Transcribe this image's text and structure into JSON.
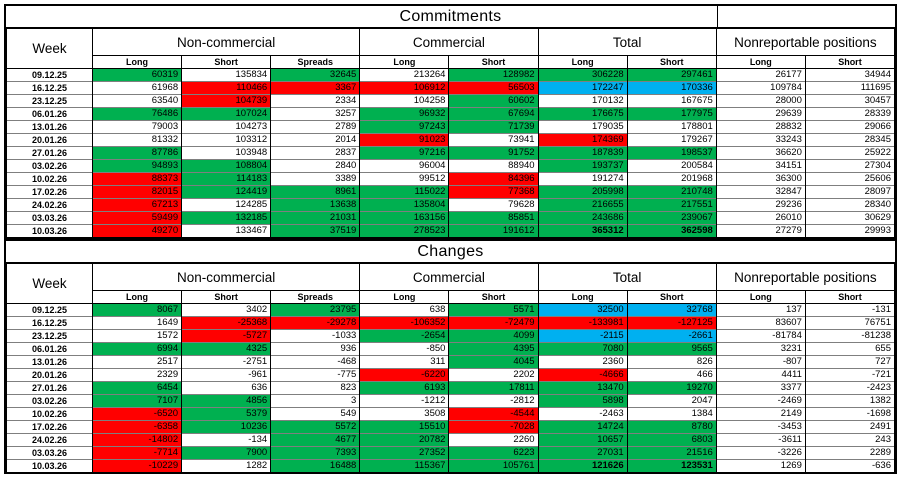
{
  "colors": {
    "green": "#00b050",
    "red": "#ff0000",
    "blue": "#00b0f0",
    "grid": "#7f7f7f"
  },
  "header": {
    "week_label": "Week",
    "groups": [
      {
        "label": "Non-commercial",
        "cols": [
          "Long",
          "Short",
          "Spreads"
        ]
      },
      {
        "label": "Commercial",
        "cols": [
          "Long",
          "Short"
        ]
      },
      {
        "label": "Total",
        "cols": [
          "Long",
          "Short"
        ]
      },
      {
        "label": "Nonreportable positions",
        "cols": [
          "Long",
          "Short"
        ]
      }
    ]
  },
  "sections": [
    {
      "title": "Commitments",
      "rows": [
        {
          "week": "09.12.25",
          "cells": [
            {
              "v": "60319",
              "c": "g"
            },
            {
              "v": "135834"
            },
            {
              "v": "32645",
              "c": "g"
            },
            {
              "v": "213264"
            },
            {
              "v": "128982",
              "c": "g"
            },
            {
              "v": "306228",
              "c": "g"
            },
            {
              "v": "297461",
              "c": "g"
            },
            {
              "v": "26177"
            },
            {
              "v": "34944"
            }
          ]
        },
        {
          "week": "16.12.25",
          "cells": [
            {
              "v": "61968"
            },
            {
              "v": "110466",
              "c": "r"
            },
            {
              "v": "3367",
              "c": "r"
            },
            {
              "v": "106912",
              "c": "r"
            },
            {
              "v": "56503",
              "c": "r"
            },
            {
              "v": "172247",
              "c": "b"
            },
            {
              "v": "170336",
              "c": "b"
            },
            {
              "v": "109784"
            },
            {
              "v": "111695"
            }
          ]
        },
        {
          "week": "23.12.25",
          "cells": [
            {
              "v": "63540"
            },
            {
              "v": "104739",
              "c": "r"
            },
            {
              "v": "2334"
            },
            {
              "v": "104258"
            },
            {
              "v": "60602",
              "c": "g"
            },
            {
              "v": "170132"
            },
            {
              "v": "167675"
            },
            {
              "v": "28000"
            },
            {
              "v": "30457"
            }
          ]
        },
        {
          "week": "06.01.26",
          "cells": [
            {
              "v": "76486",
              "c": "g"
            },
            {
              "v": "107024",
              "c": "g"
            },
            {
              "v": "3257"
            },
            {
              "v": "96932",
              "c": "g"
            },
            {
              "v": "67694",
              "c": "g"
            },
            {
              "v": "176675",
              "c": "g"
            },
            {
              "v": "177975",
              "c": "g"
            },
            {
              "v": "29639"
            },
            {
              "v": "28339"
            }
          ]
        },
        {
          "week": "13.01.26",
          "cells": [
            {
              "v": "79003"
            },
            {
              "v": "104273"
            },
            {
              "v": "2789"
            },
            {
              "v": "97243",
              "c": "g"
            },
            {
              "v": "71739",
              "c": "g"
            },
            {
              "v": "179035"
            },
            {
              "v": "178801"
            },
            {
              "v": "28832"
            },
            {
              "v": "29066"
            }
          ]
        },
        {
          "week": "20.01.26",
          "cells": [
            {
              "v": "81332"
            },
            {
              "v": "103312"
            },
            {
              "v": "2014"
            },
            {
              "v": "91023",
              "c": "r"
            },
            {
              "v": "73941"
            },
            {
              "v": "174369",
              "c": "r"
            },
            {
              "v": "179267"
            },
            {
              "v": "33243"
            },
            {
              "v": "28345"
            }
          ]
        },
        {
          "week": "27.01.26",
          "cells": [
            {
              "v": "87786",
              "c": "g"
            },
            {
              "v": "103948"
            },
            {
              "v": "2837"
            },
            {
              "v": "97216",
              "c": "g"
            },
            {
              "v": "91752",
              "c": "g"
            },
            {
              "v": "187839",
              "c": "g"
            },
            {
              "v": "198537",
              "c": "g"
            },
            {
              "v": "36620"
            },
            {
              "v": "25922"
            }
          ]
        },
        {
          "week": "03.02.26",
          "cells": [
            {
              "v": "94893",
              "c": "g"
            },
            {
              "v": "108804",
              "c": "g"
            },
            {
              "v": "2840"
            },
            {
              "v": "96004"
            },
            {
              "v": "88940"
            },
            {
              "v": "193737",
              "c": "g"
            },
            {
              "v": "200584"
            },
            {
              "v": "34151"
            },
            {
              "v": "27304"
            }
          ]
        },
        {
          "week": "10.02.26",
          "cells": [
            {
              "v": "88373",
              "c": "r"
            },
            {
              "v": "114183",
              "c": "g"
            },
            {
              "v": "3389"
            },
            {
              "v": "99512"
            },
            {
              "v": "84396",
              "c": "r"
            },
            {
              "v": "191274"
            },
            {
              "v": "201968"
            },
            {
              "v": "36300"
            },
            {
              "v": "25606"
            }
          ]
        },
        {
          "week": "17.02.26",
          "cells": [
            {
              "v": "82015",
              "c": "r"
            },
            {
              "v": "124419",
              "c": "g"
            },
            {
              "v": "8961",
              "c": "g"
            },
            {
              "v": "115022",
              "c": "g"
            },
            {
              "v": "77368",
              "c": "r"
            },
            {
              "v": "205998",
              "c": "g"
            },
            {
              "v": "210748",
              "c": "g"
            },
            {
              "v": "32847"
            },
            {
              "v": "28097"
            }
          ]
        },
        {
          "week": "24.02.26",
          "cells": [
            {
              "v": "67213",
              "c": "r"
            },
            {
              "v": "124285"
            },
            {
              "v": "13638",
              "c": "g"
            },
            {
              "v": "135804",
              "c": "g"
            },
            {
              "v": "79628"
            },
            {
              "v": "216655",
              "c": "g"
            },
            {
              "v": "217551",
              "c": "g"
            },
            {
              "v": "29236"
            },
            {
              "v": "28340"
            }
          ]
        },
        {
          "week": "03.03.26",
          "cells": [
            {
              "v": "59499",
              "c": "r"
            },
            {
              "v": "132185",
              "c": "g"
            },
            {
              "v": "21031",
              "c": "g"
            },
            {
              "v": "163156",
              "c": "g"
            },
            {
              "v": "85851",
              "c": "g"
            },
            {
              "v": "243686",
              "c": "g"
            },
            {
              "v": "239067",
              "c": "g"
            },
            {
              "v": "26010"
            },
            {
              "v": "30629"
            }
          ]
        },
        {
          "week": "10.03.26",
          "cells": [
            {
              "v": "49270",
              "c": "r"
            },
            {
              "v": "133467"
            },
            {
              "v": "37519",
              "c": "g"
            },
            {
              "v": "278523",
              "c": "g"
            },
            {
              "v": "191612",
              "c": "g"
            },
            {
              "v": "365312",
              "c": "g",
              "b": 1
            },
            {
              "v": "362598",
              "c": "g",
              "b": 1
            },
            {
              "v": "27279"
            },
            {
              "v": "29993"
            }
          ]
        }
      ]
    },
    {
      "title": "Changes",
      "rows": [
        {
          "week": "09.12.25",
          "cells": [
            {
              "v": "8067",
              "c": "g"
            },
            {
              "v": "3402"
            },
            {
              "v": "23795",
              "c": "g"
            },
            {
              "v": "638"
            },
            {
              "v": "5571",
              "c": "g"
            },
            {
              "v": "32500",
              "c": "b"
            },
            {
              "v": "32768",
              "c": "b"
            },
            {
              "v": "137"
            },
            {
              "v": "-131"
            }
          ]
        },
        {
          "week": "16.12.25",
          "cells": [
            {
              "v": "1649"
            },
            {
              "v": "-25368",
              "c": "r"
            },
            {
              "v": "-29278",
              "c": "r"
            },
            {
              "v": "-106352",
              "c": "r"
            },
            {
              "v": "-72479",
              "c": "r"
            },
            {
              "v": "-133981",
              "c": "r"
            },
            {
              "v": "-127125",
              "c": "r"
            },
            {
              "v": "83607"
            },
            {
              "v": "76751"
            }
          ]
        },
        {
          "week": "23.12.25",
          "cells": [
            {
              "v": "1572"
            },
            {
              "v": "-5727",
              "c": "r"
            },
            {
              "v": "-1033"
            },
            {
              "v": "-2654",
              "c": "g"
            },
            {
              "v": "4099",
              "c": "g"
            },
            {
              "v": "-2115",
              "c": "b"
            },
            {
              "v": "-2661",
              "c": "b"
            },
            {
              "v": "-81784"
            },
            {
              "v": "-81238"
            }
          ]
        },
        {
          "week": "06.01.26",
          "cells": [
            {
              "v": "6994",
              "c": "g"
            },
            {
              "v": "4325",
              "c": "g"
            },
            {
              "v": "936"
            },
            {
              "v": "-850"
            },
            {
              "v": "4395",
              "c": "g"
            },
            {
              "v": "7080",
              "c": "g"
            },
            {
              "v": "9565",
              "c": "g"
            },
            {
              "v": "3231"
            },
            {
              "v": "655"
            }
          ]
        },
        {
          "week": "13.01.26",
          "cells": [
            {
              "v": "2517"
            },
            {
              "v": "-2751"
            },
            {
              "v": "-468"
            },
            {
              "v": "311"
            },
            {
              "v": "4045",
              "c": "g"
            },
            {
              "v": "2360"
            },
            {
              "v": "826"
            },
            {
              "v": "-807"
            },
            {
              "v": "727"
            }
          ]
        },
        {
          "week": "20.01.26",
          "cells": [
            {
              "v": "2329"
            },
            {
              "v": "-961"
            },
            {
              "v": "-775"
            },
            {
              "v": "-6220",
              "c": "r"
            },
            {
              "v": "2202"
            },
            {
              "v": "-4666",
              "c": "r"
            },
            {
              "v": "466"
            },
            {
              "v": "4411"
            },
            {
              "v": "-721"
            }
          ]
        },
        {
          "week": "27.01.26",
          "cells": [
            {
              "v": "6454",
              "c": "g"
            },
            {
              "v": "636"
            },
            {
              "v": "823"
            },
            {
              "v": "6193",
              "c": "g"
            },
            {
              "v": "17811",
              "c": "g"
            },
            {
              "v": "13470",
              "c": "g"
            },
            {
              "v": "19270",
              "c": "g"
            },
            {
              "v": "3377"
            },
            {
              "v": "-2423"
            }
          ]
        },
        {
          "week": "03.02.26",
          "cells": [
            {
              "v": "7107",
              "c": "g"
            },
            {
              "v": "4856",
              "c": "g"
            },
            {
              "v": "3"
            },
            {
              "v": "-1212"
            },
            {
              "v": "-2812"
            },
            {
              "v": "5898",
              "c": "g"
            },
            {
              "v": "2047"
            },
            {
              "v": "-2469"
            },
            {
              "v": "1382"
            }
          ]
        },
        {
          "week": "10.02.26",
          "cells": [
            {
              "v": "-6520",
              "c": "r"
            },
            {
              "v": "5379",
              "c": "g"
            },
            {
              "v": "549"
            },
            {
              "v": "3508"
            },
            {
              "v": "-4544",
              "c": "r"
            },
            {
              "v": "-2463"
            },
            {
              "v": "1384"
            },
            {
              "v": "2149"
            },
            {
              "v": "-1698"
            }
          ]
        },
        {
          "week": "17.02.26",
          "cells": [
            {
              "v": "-6358",
              "c": "r"
            },
            {
              "v": "10236",
              "c": "g"
            },
            {
              "v": "5572",
              "c": "g"
            },
            {
              "v": "15510",
              "c": "g"
            },
            {
              "v": "-7028",
              "c": "r"
            },
            {
              "v": "14724",
              "c": "g"
            },
            {
              "v": "8780",
              "c": "g"
            },
            {
              "v": "-3453"
            },
            {
              "v": "2491"
            }
          ]
        },
        {
          "week": "24.02.26",
          "cells": [
            {
              "v": "-14802",
              "c": "r"
            },
            {
              "v": "-134"
            },
            {
              "v": "4677",
              "c": "g"
            },
            {
              "v": "20782",
              "c": "g"
            },
            {
              "v": "2260"
            },
            {
              "v": "10657",
              "c": "g"
            },
            {
              "v": "6803",
              "c": "g"
            },
            {
              "v": "-3611"
            },
            {
              "v": "243"
            }
          ]
        },
        {
          "week": "03.03.26",
          "cells": [
            {
              "v": "-7714",
              "c": "r"
            },
            {
              "v": "7900",
              "c": "g"
            },
            {
              "v": "7393",
              "c": "g"
            },
            {
              "v": "27352",
              "c": "g"
            },
            {
              "v": "6223",
              "c": "g"
            },
            {
              "v": "27031",
              "c": "g"
            },
            {
              "v": "21516",
              "c": "g"
            },
            {
              "v": "-3226"
            },
            {
              "v": "2289"
            }
          ]
        },
        {
          "week": "10.03.26",
          "cells": [
            {
              "v": "-10229",
              "c": "r"
            },
            {
              "v": "1282"
            },
            {
              "v": "16488",
              "c": "g"
            },
            {
              "v": "115367",
              "c": "g"
            },
            {
              "v": "105761",
              "c": "g"
            },
            {
              "v": "121626",
              "c": "g",
              "b": 1
            },
            {
              "v": "123531",
              "c": "g",
              "b": 1
            },
            {
              "v": "1269"
            },
            {
              "v": "-636"
            }
          ]
        }
      ]
    }
  ]
}
